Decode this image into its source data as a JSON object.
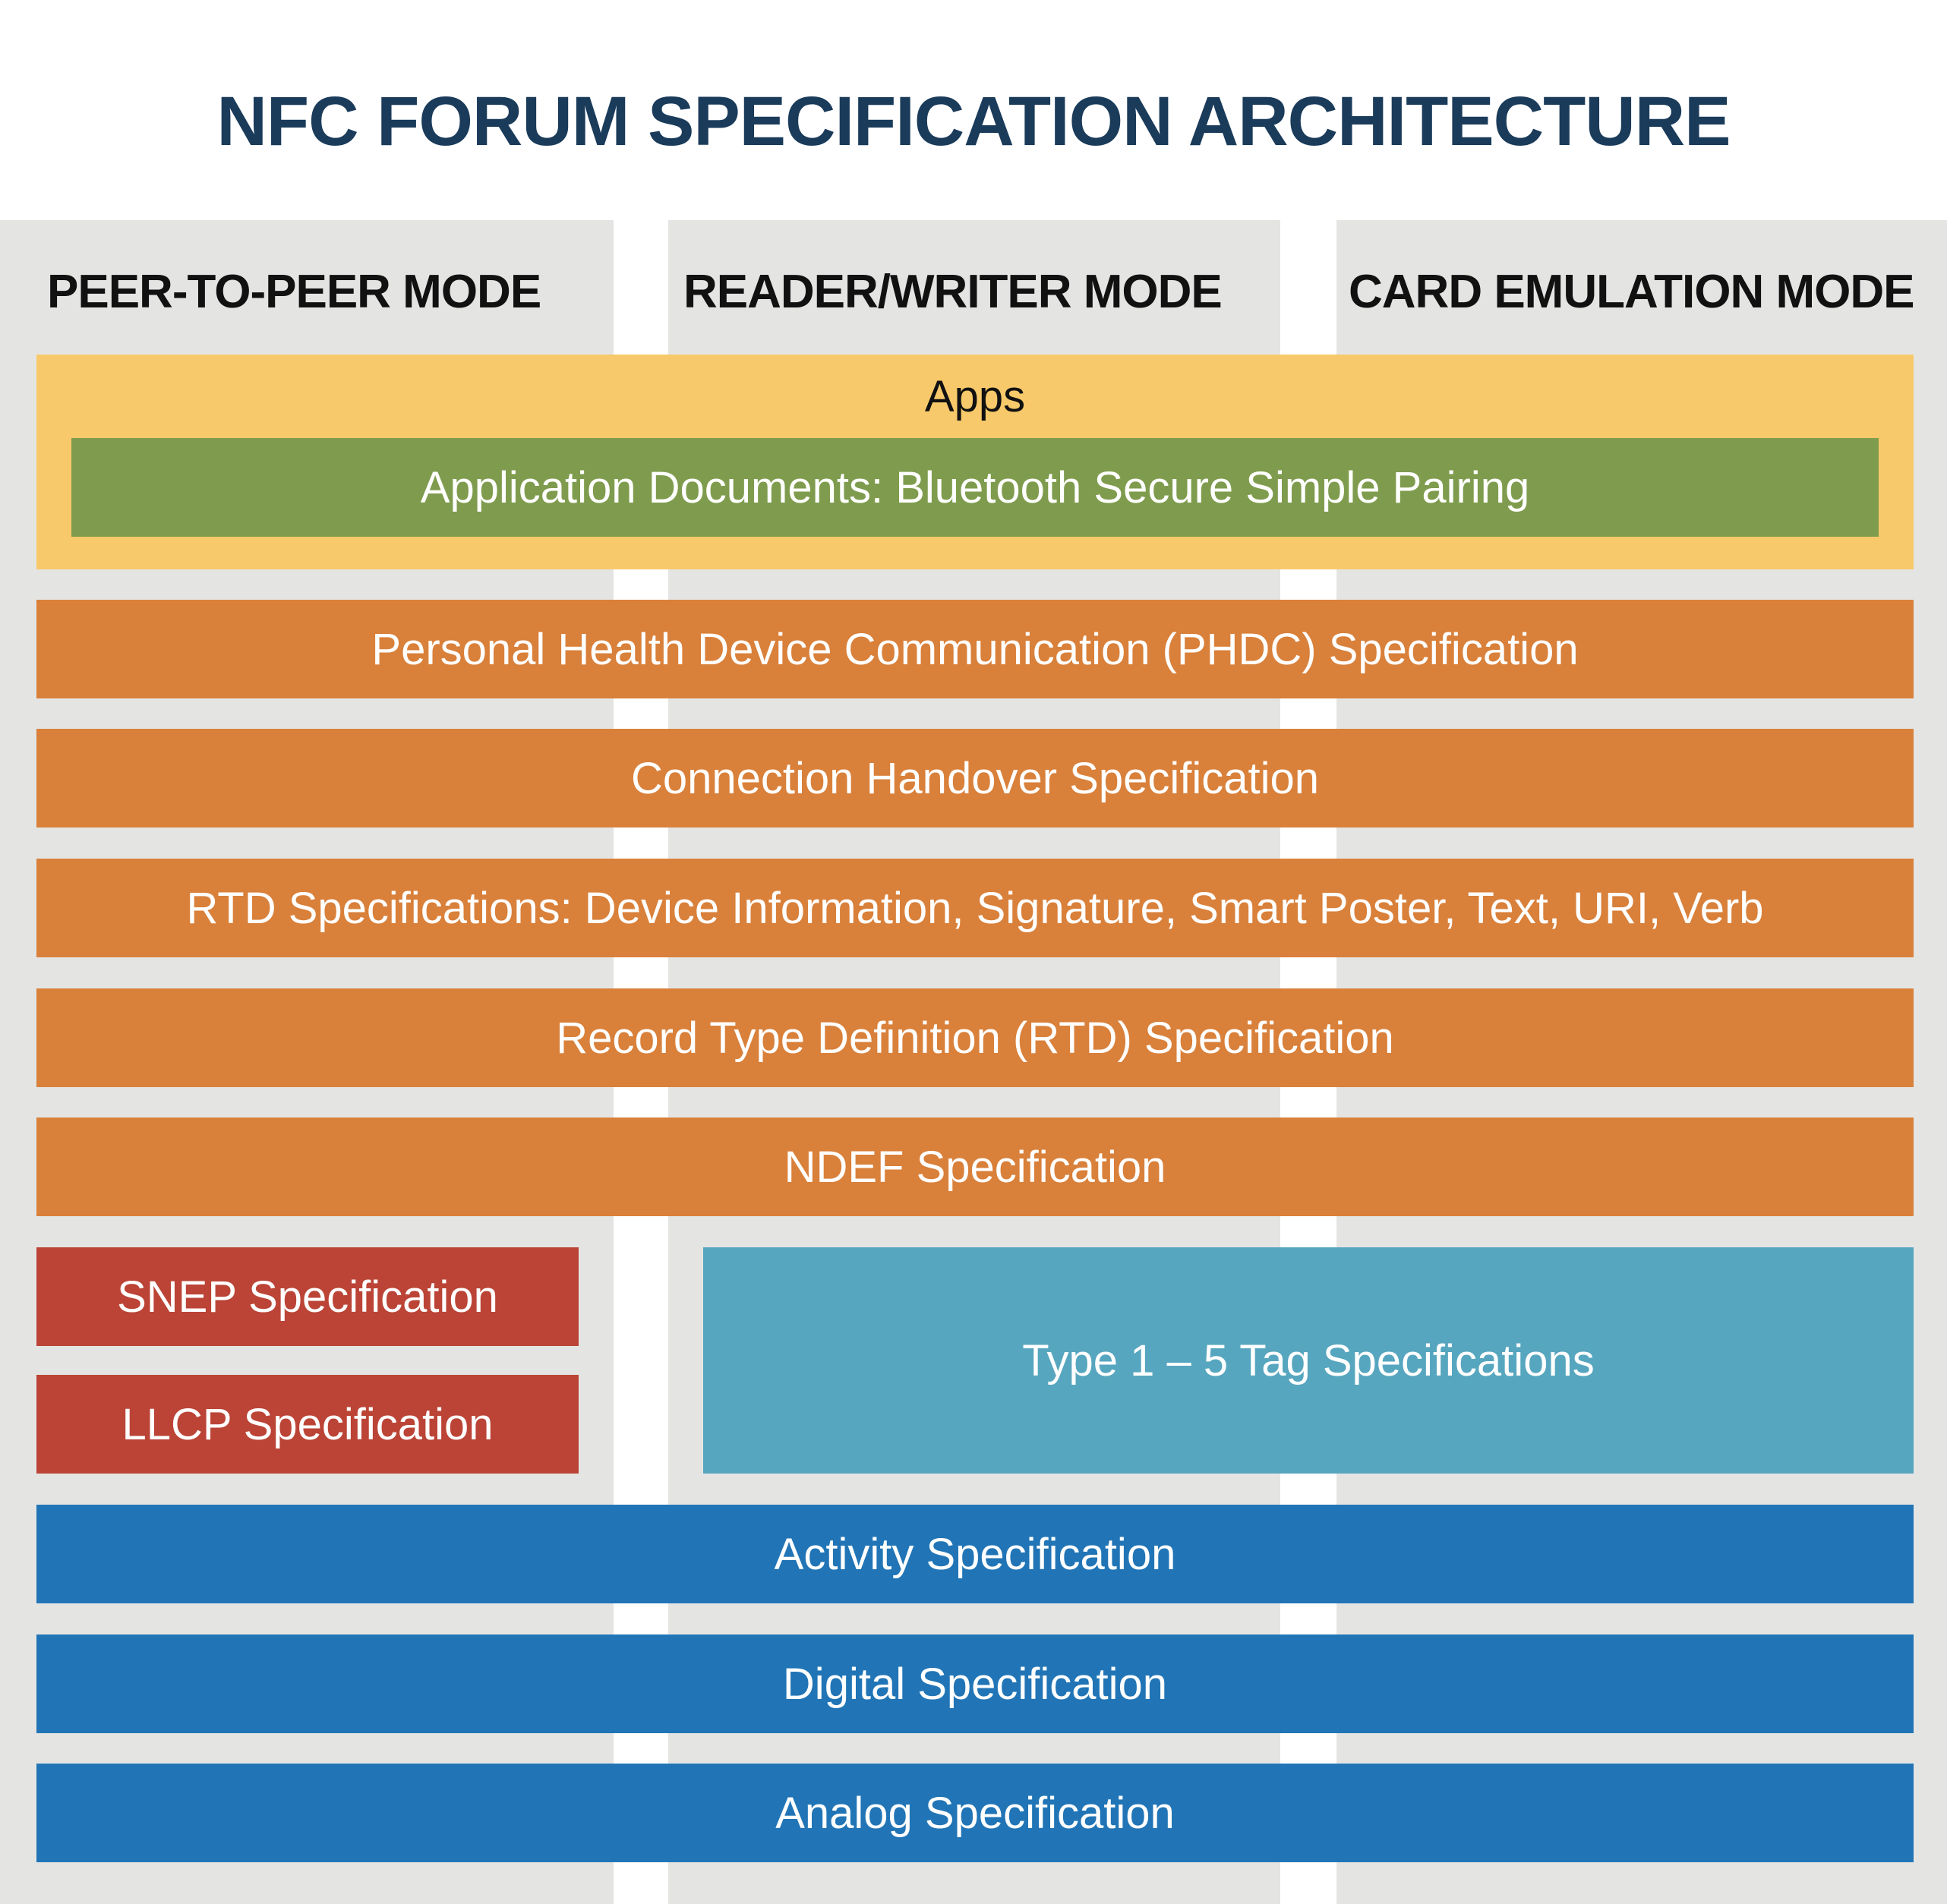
{
  "title": "NFC FORUM SPECIFICATION ARCHITECTURE",
  "modes": [
    "PEER-TO-PEER MODE",
    "READER/WRITER MODE",
    "CARD EMULATION MODE"
  ],
  "apps": {
    "label": "Apps",
    "app_documents": "Application Documents: Bluetooth Secure Simple Pairing"
  },
  "layers": {
    "phdc": "Personal Health Device Communication (PHDC) Specification",
    "connection_handover": "Connection Handover Specification",
    "rtd_specs": "RTD Specifications: Device Information, Signature, Smart Poster, Text, URI, Verb",
    "rtd": "Record Type Definition (RTD) Specification",
    "ndef": "NDEF Specification",
    "snep": "SNEP Specification",
    "llcp": "LLCP Specification",
    "tag": "Type 1 – 5 Tag Specifications",
    "activity": "Activity Specification",
    "digital": "Digital Specification",
    "analog": "Analog Specification"
  },
  "colors": {
    "title": "#1a3b5a",
    "column_bg": "#e4e5e3",
    "apps": "#f8c96a",
    "app_documents": "#7f9c4e",
    "orange": "#d9803a",
    "red": "#bb4436",
    "teal": "#57a6bf",
    "blue": "#2175b6"
  }
}
